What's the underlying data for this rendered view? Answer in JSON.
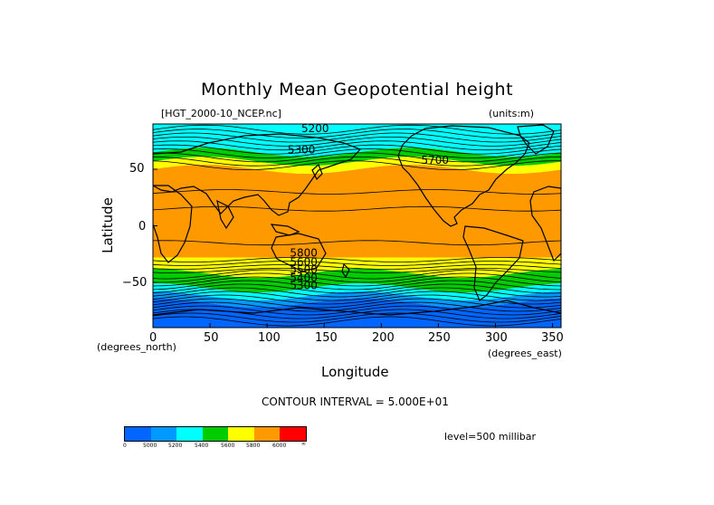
{
  "title": "Monthly Mean Geopotential height",
  "file_label": "[HGT_2000-10_NCEP.nc]",
  "units_label": "(units:m)",
  "y_axis": {
    "label": "Latitude",
    "units": "(degrees_north)",
    "ticks": [
      "50",
      "0",
      "−50"
    ]
  },
  "x_axis": {
    "label": "Longitude",
    "units": "(degrees_east)",
    "ticks": [
      "0",
      "50",
      "100",
      "150",
      "200",
      "250",
      "300",
      "350"
    ]
  },
  "contour_interval": "CONTOUR INTERVAL = 5.000E+01",
  "level": "level=500 millibar",
  "contour_labels": [
    "5200",
    "5300",
    "5700",
    "5800",
    "5600",
    "5500",
    "5400",
    "5300"
  ],
  "colorbar": {
    "colors": [
      "#0066ff",
      "#0099ff",
      "#00ffff",
      "#00cc00",
      "#ffff00",
      "#ff9900",
      "#ff0000"
    ],
    "labels": [
      "0",
      "5000",
      "5200",
      "5400",
      "5600",
      "5800",
      "6000",
      "∞"
    ]
  },
  "map": {
    "lon_range": [
      0,
      357.5
    ],
    "lat_range": [
      -90,
      90
    ],
    "bands": [
      {
        "lat_from": 90,
        "lat_to": 65,
        "color": "#00ffff"
      },
      {
        "lat_from": 65,
        "lat_to": 57,
        "color": "#00cc00"
      },
      {
        "lat_from": 57,
        "lat_to": 50,
        "color": "#ffff00"
      },
      {
        "lat_from": 50,
        "lat_to": -28,
        "color": "#ff9900"
      },
      {
        "lat_from": -28,
        "lat_to": -42,
        "color": "#ffff00"
      },
      {
        "lat_from": -42,
        "lat_to": -55,
        "color": "#00cc00"
      },
      {
        "lat_from": -55,
        "lat_to": -62,
        "color": "#00ffff"
      },
      {
        "lat_from": -62,
        "lat_to": -68,
        "color": "#0099ff"
      },
      {
        "lat_from": -68,
        "lat_to": -90,
        "color": "#0066ff"
      }
    ]
  }
}
